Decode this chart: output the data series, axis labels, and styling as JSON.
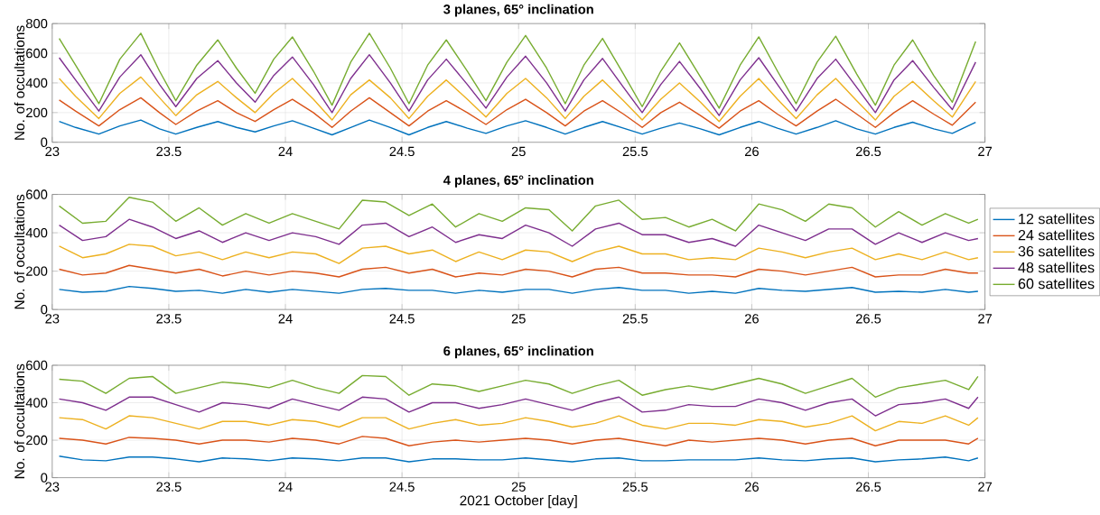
{
  "chart_data": [
    {
      "type": "line",
      "title": "3 planes, 65° inclination",
      "ylabel": "No. of occultations",
      "xlim": [
        23,
        27
      ],
      "ylim": [
        0,
        800
      ],
      "xticks": [
        23,
        23.5,
        24,
        24.5,
        25,
        25.5,
        26,
        26.5,
        27
      ],
      "yticks": [
        0,
        200,
        400,
        600,
        800
      ],
      "grid": true,
      "line_style": "solid",
      "x": [
        23.03,
        23.1,
        23.2,
        23.29,
        23.38,
        23.46,
        23.53,
        23.62,
        23.71,
        23.79,
        23.87,
        23.95,
        24.03,
        24.12,
        24.2,
        24.28,
        24.36,
        24.45,
        24.53,
        24.61,
        24.69,
        24.78,
        24.86,
        24.95,
        25.03,
        25.12,
        25.2,
        25.28,
        25.36,
        25.45,
        25.53,
        25.61,
        25.69,
        25.78,
        25.86,
        25.95,
        26.03,
        26.11,
        26.19,
        26.28,
        26.36,
        26.45,
        26.53,
        26.61,
        26.69,
        26.78,
        26.86,
        26.96
      ],
      "series": [
        {
          "color": "#0072bd",
          "values": [
            140,
            100,
            55,
            110,
            150,
            90,
            55,
            100,
            140,
            100,
            70,
            110,
            145,
            95,
            50,
            100,
            150,
            100,
            50,
            100,
            140,
            95,
            60,
            110,
            145,
            100,
            55,
            100,
            140,
            95,
            55,
            95,
            130,
            90,
            50,
            100,
            140,
            95,
            55,
            100,
            145,
            90,
            55,
            100,
            135,
            90,
            60,
            135
          ]
        },
        {
          "color": "#d95319",
          "values": [
            285,
            210,
            110,
            220,
            300,
            200,
            120,
            210,
            280,
            200,
            140,
            220,
            290,
            200,
            100,
            210,
            300,
            200,
            110,
            210,
            280,
            200,
            120,
            220,
            290,
            200,
            110,
            210,
            280,
            190,
            100,
            200,
            270,
            180,
            95,
            210,
            280,
            190,
            110,
            210,
            290,
            190,
            100,
            200,
            280,
            190,
            115,
            270
          ]
        },
        {
          "color": "#edb120",
          "values": [
            430,
            310,
            160,
            330,
            440,
            300,
            180,
            320,
            410,
            300,
            200,
            330,
            430,
            290,
            150,
            320,
            420,
            300,
            160,
            310,
            420,
            290,
            170,
            330,
            430,
            300,
            160,
            310,
            420,
            280,
            150,
            290,
            400,
            270,
            140,
            310,
            430,
            290,
            160,
            320,
            430,
            280,
            150,
            310,
            410,
            280,
            170,
            410
          ]
        },
        {
          "color": "#7e2f8e",
          "values": [
            570,
            420,
            210,
            440,
            590,
            390,
            240,
            430,
            550,
            400,
            270,
            450,
            575,
            390,
            200,
            430,
            590,
            400,
            210,
            420,
            560,
            390,
            230,
            440,
            580,
            400,
            210,
            420,
            565,
            370,
            200,
            390,
            545,
            360,
            180,
            420,
            570,
            390,
            210,
            430,
            560,
            370,
            200,
            420,
            550,
            370,
            220,
            540
          ]
        },
        {
          "color": "#77ac30",
          "values": [
            700,
            520,
            260,
            560,
            735,
            480,
            280,
            520,
            690,
            500,
            330,
            560,
            710,
            480,
            250,
            540,
            735,
            500,
            260,
            520,
            690,
            480,
            280,
            540,
            720,
            500,
            260,
            520,
            700,
            460,
            240,
            480,
            670,
            440,
            230,
            520,
            710,
            480,
            260,
            540,
            715,
            460,
            250,
            520,
            690,
            450,
            270,
            680
          ]
        }
      ]
    },
    {
      "type": "line",
      "title": "4 planes, 65° inclination",
      "ylabel": "No. of occultations",
      "xlim": [
        23,
        27
      ],
      "ylim": [
        0,
        600
      ],
      "xticks": [
        23,
        23.5,
        24,
        24.5,
        25,
        25.5,
        26,
        26.5,
        27
      ],
      "yticks": [
        0,
        200,
        400,
        600
      ],
      "grid": true,
      "line_style": "solid",
      "legend": "right",
      "x": [
        23.03,
        23.13,
        23.23,
        23.33,
        23.43,
        23.53,
        23.63,
        23.73,
        23.83,
        23.93,
        24.03,
        24.13,
        24.23,
        24.33,
        24.43,
        24.53,
        24.63,
        24.73,
        24.83,
        24.93,
        25.03,
        25.13,
        25.23,
        25.33,
        25.43,
        25.53,
        25.63,
        25.73,
        25.83,
        25.93,
        26.03,
        26.13,
        26.23,
        26.33,
        26.43,
        26.53,
        26.63,
        26.73,
        26.83,
        26.93,
        26.97
      ],
      "series": [
        {
          "name": "12 satellites",
          "color": "#0072bd",
          "values": [
            105,
            90,
            95,
            120,
            110,
            95,
            100,
            85,
            105,
            90,
            105,
            95,
            85,
            105,
            110,
            100,
            100,
            85,
            100,
            90,
            105,
            105,
            85,
            105,
            115,
            100,
            100,
            85,
            95,
            85,
            110,
            100,
            95,
            105,
            115,
            90,
            95,
            90,
            105,
            90,
            95
          ]
        },
        {
          "name": "24 satellites",
          "color": "#d95319",
          "values": [
            210,
            180,
            190,
            230,
            210,
            190,
            210,
            175,
            200,
            180,
            200,
            190,
            170,
            210,
            220,
            190,
            210,
            170,
            190,
            180,
            210,
            200,
            170,
            210,
            220,
            190,
            190,
            180,
            180,
            170,
            210,
            200,
            180,
            200,
            220,
            170,
            180,
            180,
            210,
            190,
            190
          ]
        },
        {
          "name": "36 satellites",
          "color": "#edb120",
          "values": [
            330,
            270,
            290,
            340,
            330,
            280,
            300,
            260,
            300,
            270,
            300,
            290,
            240,
            320,
            330,
            290,
            310,
            250,
            300,
            260,
            310,
            300,
            250,
            300,
            330,
            290,
            290,
            260,
            270,
            260,
            320,
            300,
            270,
            300,
            320,
            260,
            290,
            260,
            300,
            260,
            270
          ]
        },
        {
          "name": "48 satellites",
          "color": "#7e2f8e",
          "values": [
            440,
            360,
            380,
            470,
            430,
            370,
            410,
            350,
            400,
            360,
            400,
            380,
            340,
            440,
            450,
            380,
            430,
            350,
            390,
            370,
            440,
            400,
            330,
            420,
            450,
            390,
            390,
            350,
            370,
            330,
            440,
            400,
            360,
            420,
            420,
            340,
            400,
            350,
            400,
            360,
            370
          ]
        },
        {
          "name": "60 satellites",
          "color": "#77ac30",
          "values": [
            540,
            450,
            460,
            585,
            560,
            460,
            530,
            440,
            500,
            450,
            500,
            460,
            420,
            570,
            560,
            490,
            550,
            430,
            500,
            460,
            530,
            520,
            410,
            540,
            570,
            470,
            480,
            430,
            470,
            410,
            550,
            520,
            460,
            550,
            530,
            430,
            510,
            440,
            500,
            450,
            470
          ]
        }
      ]
    },
    {
      "type": "line",
      "title": "6 planes, 65° inclination",
      "xlabel": "2021 October [day]",
      "ylabel": "No. of occultations",
      "xlim": [
        23,
        27
      ],
      "ylim": [
        0,
        600
      ],
      "xticks": [
        23,
        23.5,
        24,
        24.5,
        25,
        25.5,
        26,
        26.5,
        27
      ],
      "yticks": [
        0,
        200,
        400,
        600
      ],
      "grid": true,
      "line_style": "solid",
      "x": [
        23.03,
        23.13,
        23.23,
        23.33,
        23.43,
        23.53,
        23.63,
        23.73,
        23.83,
        23.93,
        24.03,
        24.13,
        24.23,
        24.33,
        24.43,
        24.53,
        24.63,
        24.73,
        24.83,
        24.93,
        25.03,
        25.13,
        25.23,
        25.33,
        25.43,
        25.53,
        25.63,
        25.73,
        25.83,
        25.93,
        26.03,
        26.13,
        26.23,
        26.33,
        26.43,
        26.53,
        26.63,
        26.73,
        26.83,
        26.93,
        26.97
      ],
      "series": [
        {
          "color": "#0072bd",
          "values": [
            115,
            95,
            90,
            110,
            110,
            100,
            85,
            105,
            100,
            90,
            105,
            100,
            90,
            105,
            105,
            85,
            100,
            100,
            95,
            95,
            105,
            95,
            85,
            100,
            105,
            90,
            90,
            95,
            95,
            95,
            105,
            95,
            90,
            100,
            105,
            85,
            95,
            100,
            110,
            90,
            105
          ]
        },
        {
          "color": "#d95319",
          "values": [
            210,
            200,
            180,
            215,
            210,
            200,
            180,
            200,
            200,
            190,
            210,
            200,
            180,
            220,
            210,
            170,
            190,
            200,
            190,
            200,
            210,
            200,
            180,
            200,
            210,
            190,
            170,
            200,
            190,
            200,
            210,
            200,
            180,
            200,
            210,
            170,
            200,
            200,
            200,
            180,
            210
          ]
        },
        {
          "color": "#edb120",
          "values": [
            320,
            310,
            260,
            330,
            320,
            290,
            260,
            300,
            300,
            280,
            310,
            300,
            270,
            320,
            320,
            260,
            290,
            310,
            280,
            290,
            320,
            300,
            270,
            290,
            330,
            280,
            260,
            290,
            290,
            280,
            310,
            300,
            270,
            290,
            330,
            250,
            300,
            290,
            330,
            280,
            320
          ]
        },
        {
          "color": "#7e2f8e",
          "values": [
            420,
            400,
            360,
            430,
            430,
            390,
            350,
            400,
            390,
            370,
            420,
            390,
            360,
            430,
            420,
            350,
            400,
            400,
            370,
            390,
            420,
            390,
            360,
            400,
            430,
            350,
            360,
            390,
            380,
            380,
            420,
            400,
            360,
            400,
            420,
            330,
            390,
            400,
            420,
            370,
            430
          ]
        },
        {
          "color": "#77ac30",
          "values": [
            525,
            515,
            450,
            530,
            540,
            450,
            480,
            510,
            500,
            480,
            520,
            480,
            450,
            545,
            540,
            440,
            500,
            490,
            460,
            490,
            520,
            500,
            450,
            490,
            520,
            440,
            470,
            490,
            470,
            500,
            530,
            500,
            450,
            490,
            530,
            430,
            480,
            500,
            520,
            470,
            540
          ]
        }
      ]
    }
  ]
}
